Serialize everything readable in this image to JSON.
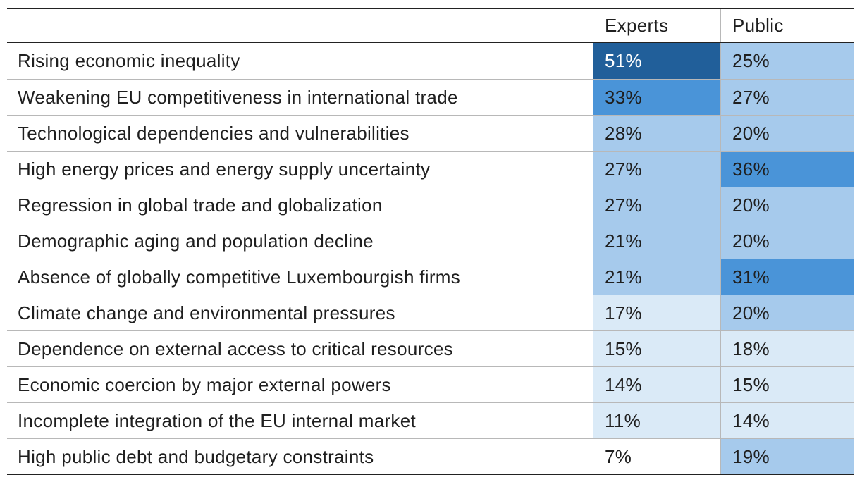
{
  "chart_data": {
    "type": "table",
    "columns": [
      "",
      "Experts",
      "Public"
    ],
    "rows": [
      {
        "label": "Rising economic inequality",
        "experts": "51%",
        "public": "25%",
        "experts_value": 51,
        "public_value": 25
      },
      {
        "label": "Weakening EU competitiveness in international trade",
        "experts": "33%",
        "public": "27%",
        "experts_value": 33,
        "public_value": 27
      },
      {
        "label": "Technological dependencies and vulnerabilities",
        "experts": "28%",
        "public": "20%",
        "experts_value": 28,
        "public_value": 20
      },
      {
        "label": "High energy prices and energy supply uncertainty",
        "experts": "27%",
        "public": "36%",
        "experts_value": 27,
        "public_value": 36
      },
      {
        "label": "Regression in global trade and globalization",
        "experts": "27%",
        "public": "20%",
        "experts_value": 27,
        "public_value": 20
      },
      {
        "label": "Demographic aging and population decline",
        "experts": "21%",
        "public": "20%",
        "experts_value": 21,
        "public_value": 20
      },
      {
        "label": "Absence of globally competitive Luxembourgish firms",
        "experts": "21%",
        "public": "31%",
        "experts_value": 21,
        "public_value": 31
      },
      {
        "label": "Climate change and environmental pressures",
        "experts": "17%",
        "public": "20%",
        "experts_value": 17,
        "public_value": 20
      },
      {
        "label": "Dependence on external access to critical resources",
        "experts": "15%",
        "public": "18%",
        "experts_value": 15,
        "public_value": 18
      },
      {
        "label": "Economic coercion by major external powers",
        "experts": "14%",
        "public": "15%",
        "experts_value": 14,
        "public_value": 15
      },
      {
        "label": "Incomplete integration of the EU internal market",
        "experts": "11%",
        "public": "14%",
        "experts_value": 11,
        "public_value": 14
      },
      {
        "label": "High public debt and budgetary constraints",
        "experts": "7%",
        "public": "19%",
        "experts_value": 7,
        "public_value": 19
      }
    ],
    "color_scale": {
      "darkest": "#215f9a",
      "dark": "#4a94d8",
      "medium": "#a6caec",
      "light": "#daeaf7",
      "none": "#ffffff"
    }
  }
}
